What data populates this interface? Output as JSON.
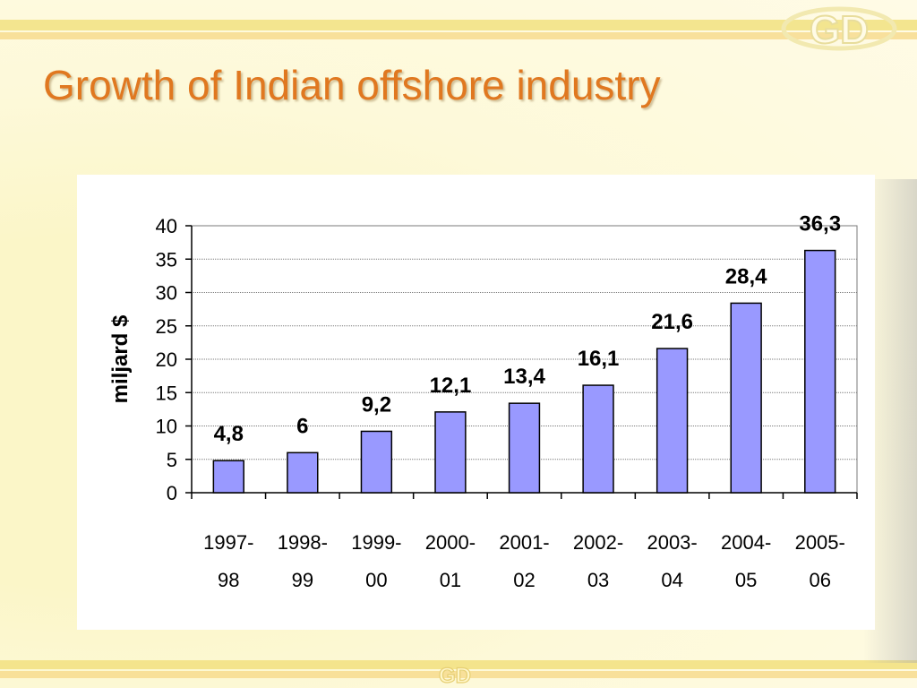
{
  "slide": {
    "title": "Growth of Indian offshore industry",
    "logo_text": "GD"
  },
  "colors": {
    "title": "#e07820",
    "bar_fill": "#9999ff",
    "bar_stroke": "#000000"
  },
  "chart_data": {
    "type": "bar",
    "title": "",
    "xlabel": "",
    "ylabel": "miljard $",
    "ylim": [
      0,
      40
    ],
    "yticks": [
      0,
      5,
      10,
      15,
      20,
      25,
      30,
      35,
      40
    ],
    "grid": true,
    "legend": "none",
    "categories": [
      [
        "1997-",
        "98"
      ],
      [
        "1998-",
        "99"
      ],
      [
        "1999-",
        "00"
      ],
      [
        "2000-",
        "01"
      ],
      [
        "2001-",
        "02"
      ],
      [
        "2002-",
        "03"
      ],
      [
        "2003-",
        "04"
      ],
      [
        "2004-",
        "05"
      ],
      [
        "2005-",
        "06"
      ]
    ],
    "values": [
      4.8,
      6,
      9.2,
      12.1,
      13.4,
      16.1,
      21.6,
      28.4,
      36.3
    ],
    "value_labels": [
      "4,8",
      "6",
      "9,2",
      "12,1",
      "13,4",
      "16,1",
      "21,6",
      "28,4",
      "36,3"
    ]
  }
}
